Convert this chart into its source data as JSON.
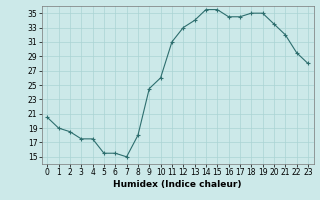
{
  "x": [
    0,
    1,
    2,
    3,
    4,
    5,
    6,
    7,
    8,
    9,
    10,
    11,
    12,
    13,
    14,
    15,
    16,
    17,
    18,
    19,
    20,
    21,
    22,
    23
  ],
  "y": [
    20.5,
    19.0,
    18.5,
    17.5,
    17.5,
    15.5,
    15.5,
    15.0,
    18.0,
    24.5,
    26.0,
    31.0,
    33.0,
    34.0,
    35.5,
    35.5,
    34.5,
    34.5,
    35.0,
    35.0,
    33.5,
    32.0,
    29.5,
    28.0
  ],
  "line_color": "#2d6e6e",
  "marker": "+",
  "marker_size": 3,
  "bg_color": "#cce9e9",
  "grid_color": "#aad4d4",
  "xlabel": "Humidex (Indice chaleur)",
  "xlim": [
    -0.5,
    23.5
  ],
  "ylim": [
    14,
    36
  ],
  "yticks": [
    15,
    17,
    19,
    21,
    23,
    25,
    27,
    29,
    31,
    33,
    35
  ],
  "xticks": [
    0,
    1,
    2,
    3,
    4,
    5,
    6,
    7,
    8,
    9,
    10,
    11,
    12,
    13,
    14,
    15,
    16,
    17,
    18,
    19,
    20,
    21,
    22,
    23
  ],
  "tick_fontsize": 5.5,
  "xlabel_fontsize": 6.5
}
